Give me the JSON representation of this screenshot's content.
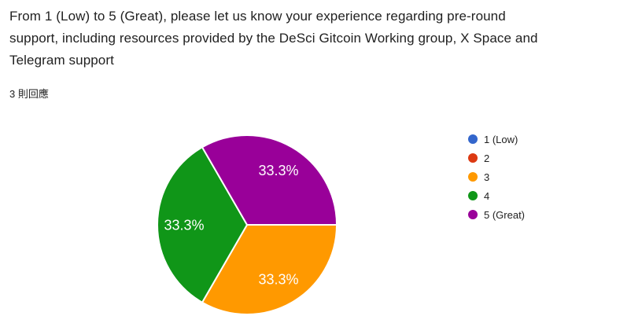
{
  "question": {
    "title": "From 1 (Low) to 5 (Great), please let us know your experience regarding pre-round support, including resources provided by the DeSci Gitcoin Working group, X Space and Telegram support",
    "title_lines": [
      "From 1 (Low) to 5 (Great), please let us know your experience regarding pre-round",
      "support, including resources provided by the DeSci Gitcoin Working group, X Space and",
      "Telegram support"
    ],
    "responses_count_label": "3 則回應",
    "responses_count": 3
  },
  "chart_data": {
    "type": "pie",
    "title": "",
    "categories": [
      "1 (Low)",
      "2",
      "3",
      "4",
      "5 (Great)"
    ],
    "values": [
      0,
      0,
      1,
      1,
      1
    ],
    "percents": [
      0,
      0,
      33.3,
      33.3,
      33.3
    ],
    "slice_labels": [
      "",
      "",
      "33.3%",
      "33.3%",
      "33.3%"
    ],
    "colors": [
      "#3366cc",
      "#dc3912",
      "#ff9900",
      "#109618",
      "#990099"
    ],
    "legend_position": "right",
    "start_angle_deg": 90,
    "slice_label_color": "#ffffff",
    "slice_border_color": "#ffffff",
    "background_color": "#ffffff",
    "text_color": "#212121"
  }
}
